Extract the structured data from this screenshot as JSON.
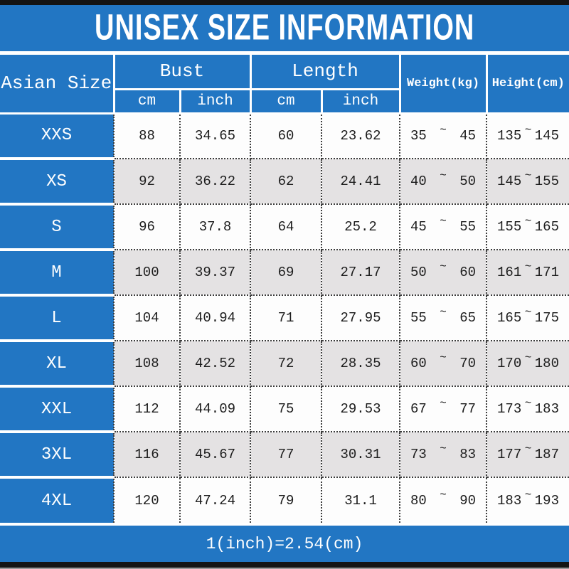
{
  "title": "UNISEX SIZE INFORMATION",
  "footer_note": "1(inch)=2.54(cm)",
  "colors": {
    "accent_blue": "#2276C3",
    "shaded_row": "#E4E2E3",
    "frame_bar": "#141414",
    "header_text": "#FFFFFF",
    "body_text": "#1C1C1C"
  },
  "table": {
    "corner_header": "Asian Size",
    "group_headers": [
      "Bust",
      "Length"
    ],
    "sub_headers": [
      "cm",
      "inch",
      "cm",
      "inch"
    ],
    "span_headers": [
      "Weight(kg)",
      "Height(cm)"
    ],
    "tilde": "~",
    "rows": [
      {
        "size": "XXS",
        "bust_cm": "88",
        "bust_inch": "34.65",
        "length_cm": "60",
        "length_inch": "23.62",
        "weight_min": "35",
        "weight_max": "45",
        "height_min": "135",
        "height_max": "145"
      },
      {
        "size": "XS",
        "bust_cm": "92",
        "bust_inch": "36.22",
        "length_cm": "62",
        "length_inch": "24.41",
        "weight_min": "40",
        "weight_max": "50",
        "height_min": "145",
        "height_max": "155"
      },
      {
        "size": "S",
        "bust_cm": "96",
        "bust_inch": "37.8",
        "length_cm": "64",
        "length_inch": "25.2",
        "weight_min": "45",
        "weight_max": "55",
        "height_min": "155",
        "height_max": "165"
      },
      {
        "size": "M",
        "bust_cm": "100",
        "bust_inch": "39.37",
        "length_cm": "69",
        "length_inch": "27.17",
        "weight_min": "50",
        "weight_max": "60",
        "height_min": "161",
        "height_max": "171"
      },
      {
        "size": "L",
        "bust_cm": "104",
        "bust_inch": "40.94",
        "length_cm": "71",
        "length_inch": "27.95",
        "weight_min": "55",
        "weight_max": "65",
        "height_min": "165",
        "height_max": "175"
      },
      {
        "size": "XL",
        "bust_cm": "108",
        "bust_inch": "42.52",
        "length_cm": "72",
        "length_inch": "28.35",
        "weight_min": "60",
        "weight_max": "70",
        "height_min": "170",
        "height_max": "180"
      },
      {
        "size": "XXL",
        "bust_cm": "112",
        "bust_inch": "44.09",
        "length_cm": "75",
        "length_inch": "29.53",
        "weight_min": "67",
        "weight_max": "77",
        "height_min": "173",
        "height_max": "183"
      },
      {
        "size": "3XL",
        "bust_cm": "116",
        "bust_inch": "45.67",
        "length_cm": "77",
        "length_inch": "30.31",
        "weight_min": "73",
        "weight_max": "83",
        "height_min": "177",
        "height_max": "187"
      },
      {
        "size": "4XL",
        "bust_cm": "120",
        "bust_inch": "47.24",
        "length_cm": "79",
        "length_inch": "31.1",
        "weight_min": "80",
        "weight_max": "90",
        "height_min": "183",
        "height_max": "193"
      }
    ]
  },
  "chart_data": {
    "type": "table",
    "title": "UNISEX SIZE INFORMATION",
    "columns": [
      "Asian Size",
      "Bust cm",
      "Bust inch",
      "Length cm",
      "Length inch",
      "Weight(kg) min",
      "Weight(kg) max",
      "Height(cm) min",
      "Height(cm) max"
    ],
    "rows": [
      [
        "XXS",
        88,
        34.65,
        60,
        23.62,
        35,
        45,
        135,
        145
      ],
      [
        "XS",
        92,
        36.22,
        62,
        24.41,
        40,
        50,
        145,
        155
      ],
      [
        "S",
        96,
        37.8,
        64,
        25.2,
        45,
        55,
        155,
        165
      ],
      [
        "M",
        100,
        39.37,
        69,
        27.17,
        50,
        60,
        161,
        171
      ],
      [
        "L",
        104,
        40.94,
        71,
        27.95,
        55,
        65,
        165,
        175
      ],
      [
        "XL",
        108,
        42.52,
        72,
        28.35,
        60,
        70,
        170,
        180
      ],
      [
        "XXL",
        112,
        44.09,
        75,
        29.53,
        67,
        77,
        173,
        183
      ],
      [
        "3XL",
        116,
        45.67,
        77,
        30.31,
        73,
        83,
        177,
        187
      ],
      [
        "4XL",
        120,
        47.24,
        79,
        31.1,
        80,
        90,
        183,
        193
      ]
    ],
    "note": "1(inch)=2.54(cm)"
  }
}
